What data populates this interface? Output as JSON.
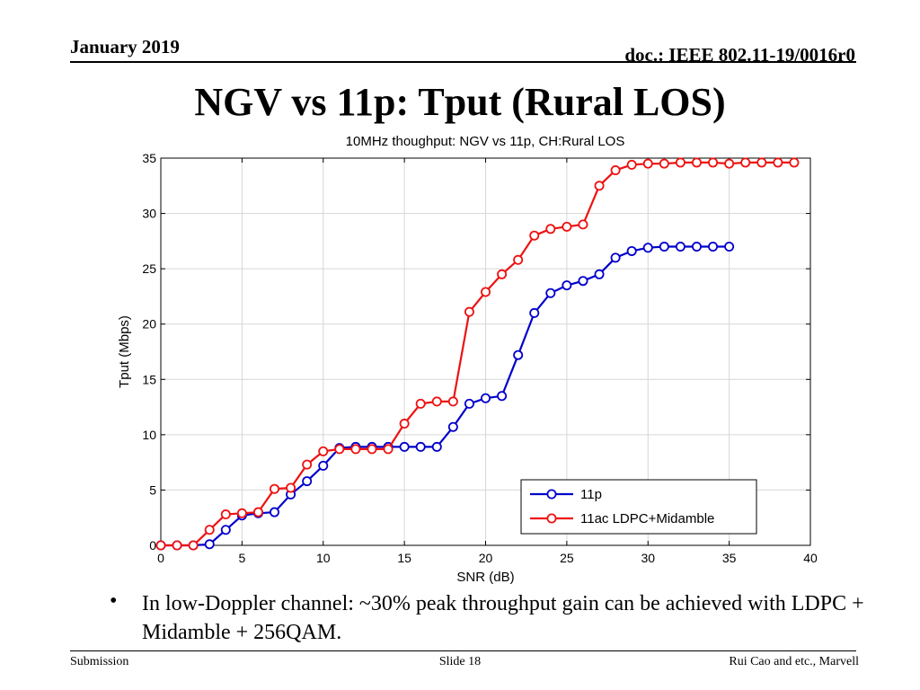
{
  "header": {
    "date": "January 2019",
    "doc": "doc.: IEEE 802.11-19/0016r0"
  },
  "slide_title": "NGV vs 11p: Tput (Rural LOS)",
  "bullet": {
    "symbol": "•",
    "text": "In low-Doppler channel: ~30% peak throughput gain can be achieved with LDPC + Midamble + 256QAM."
  },
  "footer": {
    "left": "Submission",
    "center": "Slide 18",
    "right": "Rui Cao and etc., Marvell"
  },
  "chart_data": {
    "type": "line",
    "title": "10MHz thoughput: NGV vs 11p, CH:Rural LOS",
    "xlabel": "SNR (dB)",
    "ylabel": "Tput (Mbps)",
    "xlim": [
      0,
      40
    ],
    "ylim": [
      0,
      35
    ],
    "xticks": [
      0,
      5,
      10,
      15,
      20,
      25,
      30,
      35,
      40
    ],
    "yticks": [
      0,
      5,
      10,
      15,
      20,
      25,
      30,
      35
    ],
    "grid": true,
    "legend_position": "bottom-right",
    "series": [
      {
        "name": "11p",
        "color": "#0000cc",
        "x": [
          0,
          1,
          2,
          3,
          4,
          5,
          6,
          7,
          8,
          9,
          10,
          11,
          12,
          13,
          14,
          15,
          16,
          17,
          18,
          19,
          20,
          21,
          22,
          23,
          24,
          25,
          26,
          27,
          28,
          29,
          30,
          31,
          32,
          33,
          34,
          35
        ],
        "y": [
          0,
          0,
          0,
          0.1,
          1.4,
          2.7,
          2.9,
          3.0,
          4.6,
          5.8,
          7.2,
          8.8,
          8.9,
          8.9,
          8.9,
          8.9,
          8.9,
          8.9,
          10.7,
          12.8,
          13.3,
          13.5,
          17.2,
          21.0,
          22.8,
          23.5,
          23.9,
          24.5,
          26.0,
          26.6,
          26.9,
          27.0,
          27.0,
          27.0,
          27.0,
          27.0
        ]
      },
      {
        "name": "11ac LDPC+Midamble",
        "color": "#ee1111",
        "x": [
          0,
          1,
          2,
          3,
          4,
          5,
          6,
          7,
          8,
          9,
          10,
          11,
          12,
          13,
          14,
          15,
          16,
          17,
          18,
          19,
          20,
          21,
          22,
          23,
          24,
          25,
          26,
          27,
          28,
          29,
          30,
          31,
          32,
          33,
          34,
          35,
          36,
          37,
          38,
          39
        ],
        "y": [
          0,
          0,
          0,
          1.4,
          2.8,
          2.9,
          3.0,
          5.1,
          5.2,
          7.3,
          8.5,
          8.7,
          8.7,
          8.7,
          8.7,
          11.0,
          12.8,
          13.0,
          13.0,
          21.1,
          22.9,
          24.5,
          25.8,
          28.0,
          28.6,
          28.8,
          29.0,
          32.5,
          33.9,
          34.4,
          34.5,
          34.5,
          34.6,
          34.6,
          34.6,
          34.5,
          34.6,
          34.6,
          34.6,
          34.6
        ]
      }
    ]
  }
}
